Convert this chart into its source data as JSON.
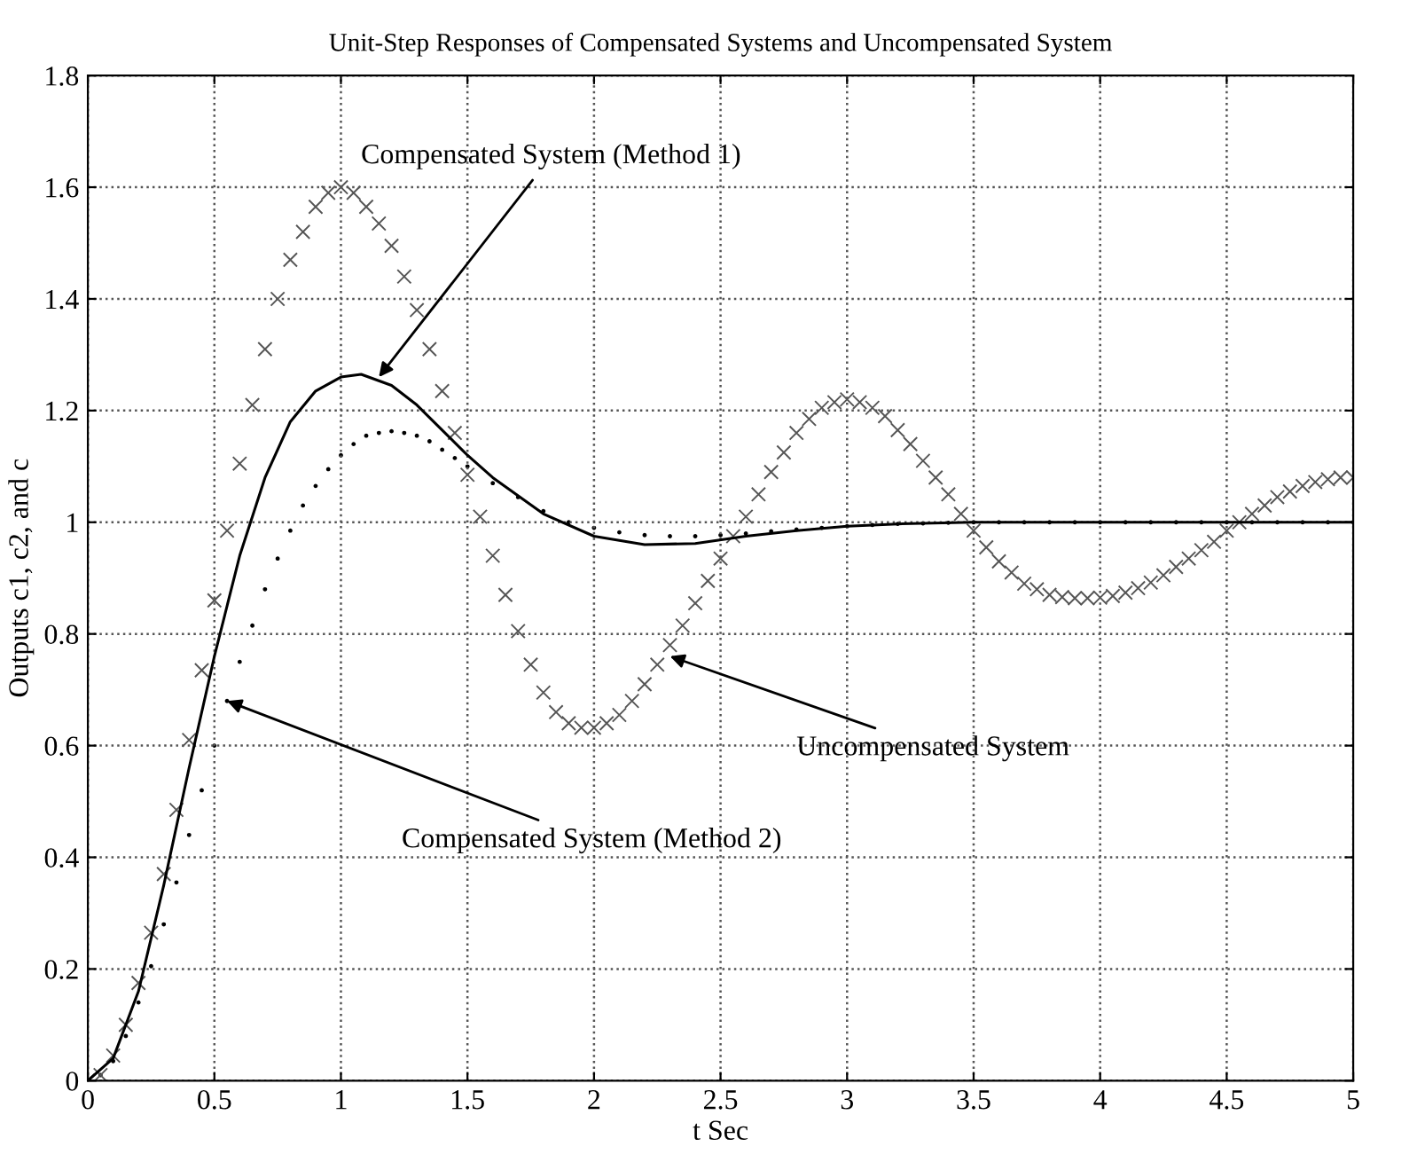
{
  "chart_data": {
    "type": "line",
    "title": "Unit-Step Responses of Compensated Systems and Uncompensated System",
    "xlabel": "t Sec",
    "ylabel": "Outputs c1, c2, and c",
    "xlim": [
      0,
      5
    ],
    "ylim": [
      0,
      1.8
    ],
    "xticks": [
      0,
      0.5,
      1,
      1.5,
      2,
      2.5,
      3,
      3.5,
      4,
      4.5,
      5
    ],
    "yticks": [
      0,
      0.2,
      0.4,
      0.6,
      0.8,
      1,
      1.2,
      1.4,
      1.6,
      1.8
    ],
    "grid": true,
    "line_style": "solid",
    "series": [
      {
        "color": "#000000",
        "x": [
          0,
          0.1,
          0.2,
          0.3,
          0.4,
          0.5,
          0.6,
          0.7,
          0.8,
          0.9,
          1.0,
          1.08,
          1.2,
          1.3,
          1.4,
          1.5,
          1.6,
          1.8,
          2.0,
          2.2,
          2.4,
          2.6,
          2.8,
          3.0,
          3.2,
          3.5,
          4,
          5
        ],
        "values": [
          0,
          0.04,
          0.16,
          0.35,
          0.56,
          0.76,
          0.94,
          1.08,
          1.18,
          1.235,
          1.26,
          1.265,
          1.245,
          1.21,
          1.165,
          1.12,
          1.08,
          1.015,
          0.975,
          0.96,
          0.962,
          0.975,
          0.985,
          0.993,
          0.997,
          1.0,
          1.0,
          1.0
        ]
      },
      {
        "type": "scatter",
        "marker": "circle",
        "color": "#000000",
        "x": [
          0.05,
          0.1,
          0.15,
          0.2,
          0.25,
          0.3,
          0.35,
          0.4,
          0.45,
          0.5,
          0.55,
          0.6,
          0.65,
          0.7,
          0.75,
          0.8,
          0.85,
          0.9,
          0.95,
          1.0,
          1.05,
          1.1,
          1.15,
          1.2,
          1.25,
          1.3,
          1.35,
          1.4,
          1.45,
          1.5,
          1.6,
          1.7,
          1.8,
          1.9,
          2.0,
          2.1,
          2.2,
          2.3,
          2.4,
          2.5,
          2.6,
          2.7,
          2.8,
          2.9,
          3.0,
          3.1,
          3.2,
          3.3,
          3.4,
          3.5,
          3.6,
          3.7,
          3.8,
          3.9,
          4.0,
          4.1,
          4.2,
          4.3,
          4.4,
          4.5,
          4.6,
          4.7,
          4.8,
          4.9,
          5.0
        ],
        "values": [
          0.01,
          0.035,
          0.08,
          0.14,
          0.205,
          0.28,
          0.355,
          0.44,
          0.52,
          0.6,
          0.68,
          0.75,
          0.815,
          0.88,
          0.935,
          0.985,
          1.03,
          1.065,
          1.095,
          1.12,
          1.14,
          1.155,
          1.16,
          1.163,
          1.16,
          1.155,
          1.145,
          1.13,
          1.115,
          1.1,
          1.07,
          1.045,
          1.02,
          1.0,
          0.99,
          0.982,
          0.977,
          0.975,
          0.975,
          0.977,
          0.98,
          0.984,
          0.987,
          0.99,
          0.993,
          0.995,
          0.997,
          0.998,
          0.999,
          1.0,
          1.0,
          1.0,
          1.0,
          1.0,
          1.0,
          1.0,
          1.0,
          1.0,
          1.0,
          1.0,
          1.0,
          1.0,
          1.0,
          1.0,
          1.0
        ]
      },
      {
        "type": "scatter",
        "marker": "cross",
        "color": "#555555",
        "x": [
          0,
          0.05,
          0.1,
          0.15,
          0.2,
          0.25,
          0.3,
          0.35,
          0.4,
          0.45,
          0.5,
          0.55,
          0.6,
          0.65,
          0.7,
          0.75,
          0.8,
          0.85,
          0.9,
          0.95,
          1.0,
          1.05,
          1.1,
          1.15,
          1.2,
          1.25,
          1.3,
          1.35,
          1.4,
          1.45,
          1.5,
          1.55,
          1.6,
          1.65,
          1.7,
          1.75,
          1.8,
          1.85,
          1.9,
          1.95,
          2.0,
          2.05,
          2.1,
          2.15,
          2.2,
          2.25,
          2.3,
          2.35,
          2.4,
          2.45,
          2.5,
          2.55,
          2.6,
          2.65,
          2.7,
          2.75,
          2.8,
          2.85,
          2.9,
          2.95,
          3.0,
          3.05,
          3.1,
          3.15,
          3.2,
          3.25,
          3.3,
          3.35,
          3.4,
          3.45,
          3.5,
          3.55,
          3.6,
          3.65,
          3.7,
          3.75,
          3.8,
          3.85,
          3.9,
          3.95,
          4.0,
          4.05,
          4.1,
          4.15,
          4.2,
          4.25,
          4.3,
          4.35,
          4.4,
          4.45,
          4.5,
          4.55,
          4.6,
          4.65,
          4.7,
          4.75,
          4.8,
          4.85,
          4.9,
          4.95,
          5.0
        ],
        "values": [
          0,
          0.01,
          0.045,
          0.1,
          0.175,
          0.265,
          0.37,
          0.485,
          0.61,
          0.735,
          0.86,
          0.985,
          1.105,
          1.21,
          1.31,
          1.4,
          1.47,
          1.52,
          1.565,
          1.59,
          1.6,
          1.59,
          1.565,
          1.535,
          1.495,
          1.44,
          1.38,
          1.31,
          1.235,
          1.16,
          1.085,
          1.01,
          0.94,
          0.87,
          0.805,
          0.745,
          0.695,
          0.66,
          0.64,
          0.632,
          0.632,
          0.64,
          0.655,
          0.68,
          0.71,
          0.745,
          0.78,
          0.815,
          0.855,
          0.895,
          0.935,
          0.975,
          1.01,
          1.05,
          1.09,
          1.125,
          1.16,
          1.185,
          1.205,
          1.215,
          1.22,
          1.215,
          1.205,
          1.19,
          1.165,
          1.14,
          1.11,
          1.08,
          1.05,
          1.015,
          0.985,
          0.955,
          0.93,
          0.91,
          0.89,
          0.88,
          0.87,
          0.866,
          0.864,
          0.864,
          0.865,
          0.868,
          0.874,
          0.882,
          0.892,
          0.905,
          0.92,
          0.935,
          0.95,
          0.965,
          0.985,
          1.0,
          1.015,
          1.03,
          1.045,
          1.055,
          1.065,
          1.072,
          1.077,
          1.08,
          1.08
        ]
      }
    ],
    "annotations": [
      {
        "text": "Compensated System (Method 1)",
        "x": 1.15,
        "y": 1.26
      },
      {
        "text": "Uncompensated System",
        "x": 2.3,
        "y": 0.76
      },
      {
        "text": "Compensated System (Method 2)",
        "x": 0.55,
        "y": 0.68
      }
    ]
  }
}
